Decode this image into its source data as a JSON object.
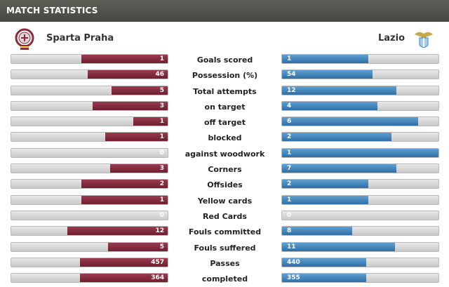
{
  "header": {
    "title": "MATCH STATISTICS"
  },
  "teams": {
    "home": {
      "name": "Sparta Praha",
      "crest_icon": "sparta-crest-icon",
      "color": "#7a2536"
    },
    "away": {
      "name": "Lazio",
      "crest_icon": "lazio-eagle-crest-icon",
      "color": "#3d83bd"
    }
  },
  "stats": [
    {
      "label": "Goals scored",
      "home": "1",
      "away": "1",
      "home_fill": 0.55,
      "away_fill": 0.55
    },
    {
      "label": "Possession (%)",
      "home": "46",
      "away": "54",
      "home_fill": 0.51,
      "away_fill": 0.58
    },
    {
      "label": "Total attempts",
      "home": "5",
      "away": "12",
      "home_fill": 0.36,
      "away_fill": 0.73
    },
    {
      "label": "on target",
      "home": "3",
      "away": "4",
      "home_fill": 0.48,
      "away_fill": 0.61
    },
    {
      "label": "off target",
      "home": "1",
      "away": "6",
      "home_fill": 0.22,
      "away_fill": 0.87
    },
    {
      "label": "blocked",
      "home": "1",
      "away": "2",
      "home_fill": 0.4,
      "away_fill": 0.7
    },
    {
      "label": "against woodwork",
      "home": "0",
      "away": "1",
      "home_fill": 0,
      "away_fill": 1.0
    },
    {
      "label": "Corners",
      "home": "3",
      "away": "7",
      "home_fill": 0.37,
      "away_fill": 0.73
    },
    {
      "label": "Offsides",
      "home": "2",
      "away": "2",
      "home_fill": 0.55,
      "away_fill": 0.55
    },
    {
      "label": "Yellow cards",
      "home": "1",
      "away": "1",
      "home_fill": 0.55,
      "away_fill": 0.55
    },
    {
      "label": "Red Cards",
      "home": "0",
      "away": "0",
      "home_fill": 0,
      "away_fill": 0
    },
    {
      "label": "Fouls committed",
      "home": "12",
      "away": "8",
      "home_fill": 0.64,
      "away_fill": 0.45
    },
    {
      "label": "Fouls suffered",
      "home": "5",
      "away": "11",
      "home_fill": 0.38,
      "away_fill": 0.72
    },
    {
      "label": "Passes",
      "home": "457",
      "away": "440",
      "home_fill": 0.56,
      "away_fill": 0.54
    },
    {
      "label": "completed",
      "home": "364",
      "away": "355",
      "home_fill": 0.56,
      "away_fill": 0.54
    }
  ]
}
